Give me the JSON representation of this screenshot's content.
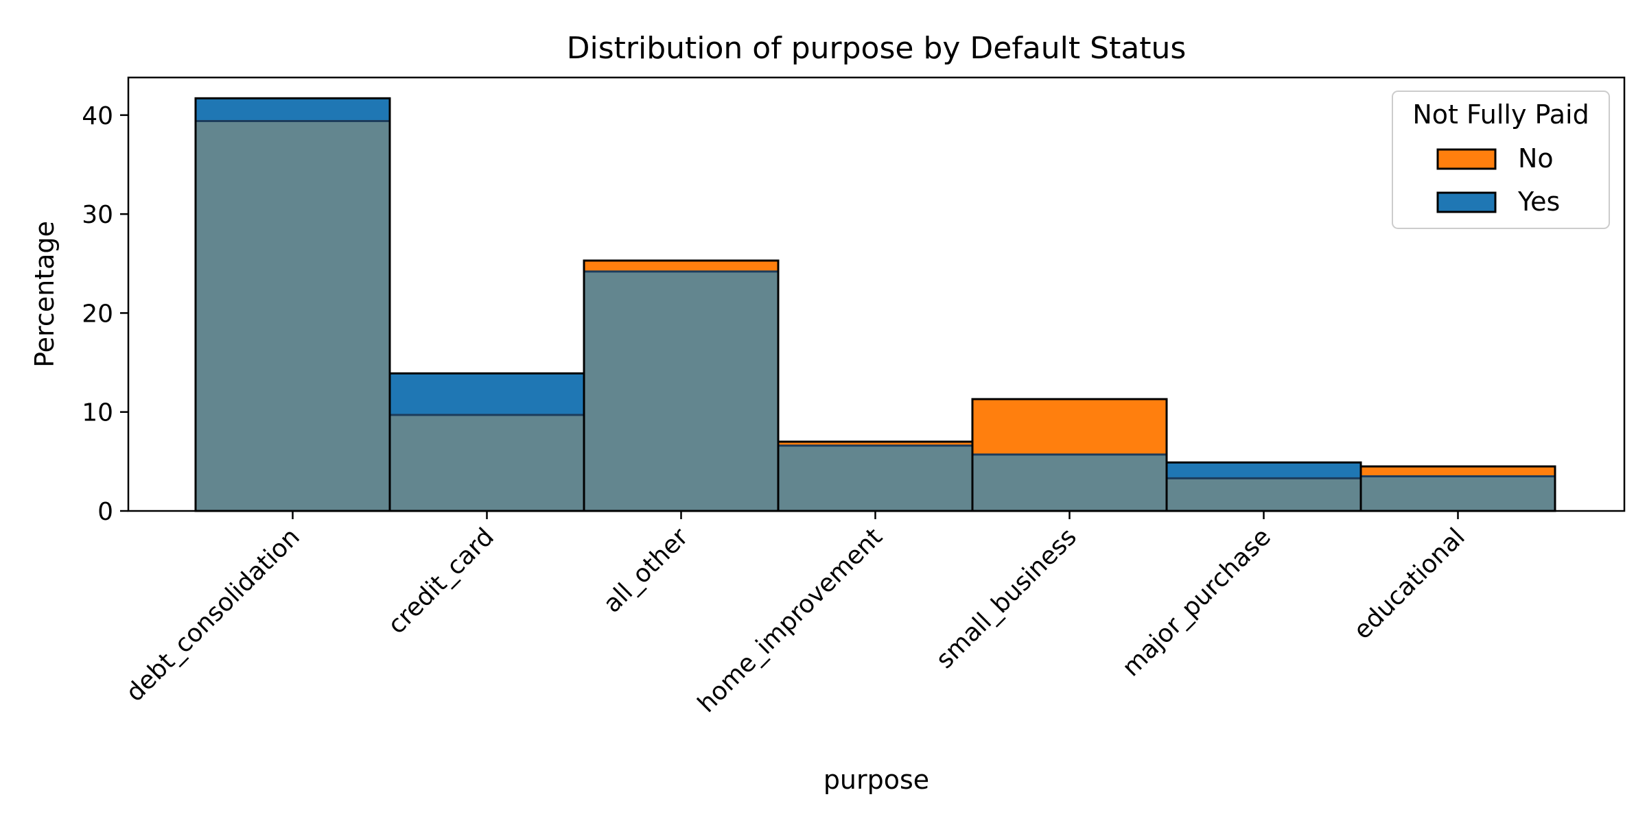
{
  "chart_data": {
    "type": "bar",
    "title": "Distribution of purpose by Default Status",
    "xlabel": "purpose",
    "ylabel": "Percentage",
    "ylim": [
      0,
      43.8
    ],
    "yticks": [
      0,
      10,
      20,
      30,
      40
    ],
    "categories": [
      "debt_consolidation",
      "credit_card",
      "all_other",
      "home_improvement",
      "small_business",
      "major_purchase",
      "educational"
    ],
    "series": [
      {
        "name": "No",
        "values": [
          39.4,
          9.7,
          25.3,
          7.0,
          11.3,
          3.3,
          4.5
        ]
      },
      {
        "name": "Yes",
        "values": [
          41.7,
          13.9,
          24.2,
          6.6,
          5.7,
          4.9,
          3.5
        ]
      }
    ],
    "legend": {
      "title": "Not Fully Paid",
      "position": "top-right"
    },
    "grid": false
  },
  "colors": {
    "No": "#ff7f0e",
    "Yes": "#1f77b4",
    "overlap": "#63868f"
  }
}
